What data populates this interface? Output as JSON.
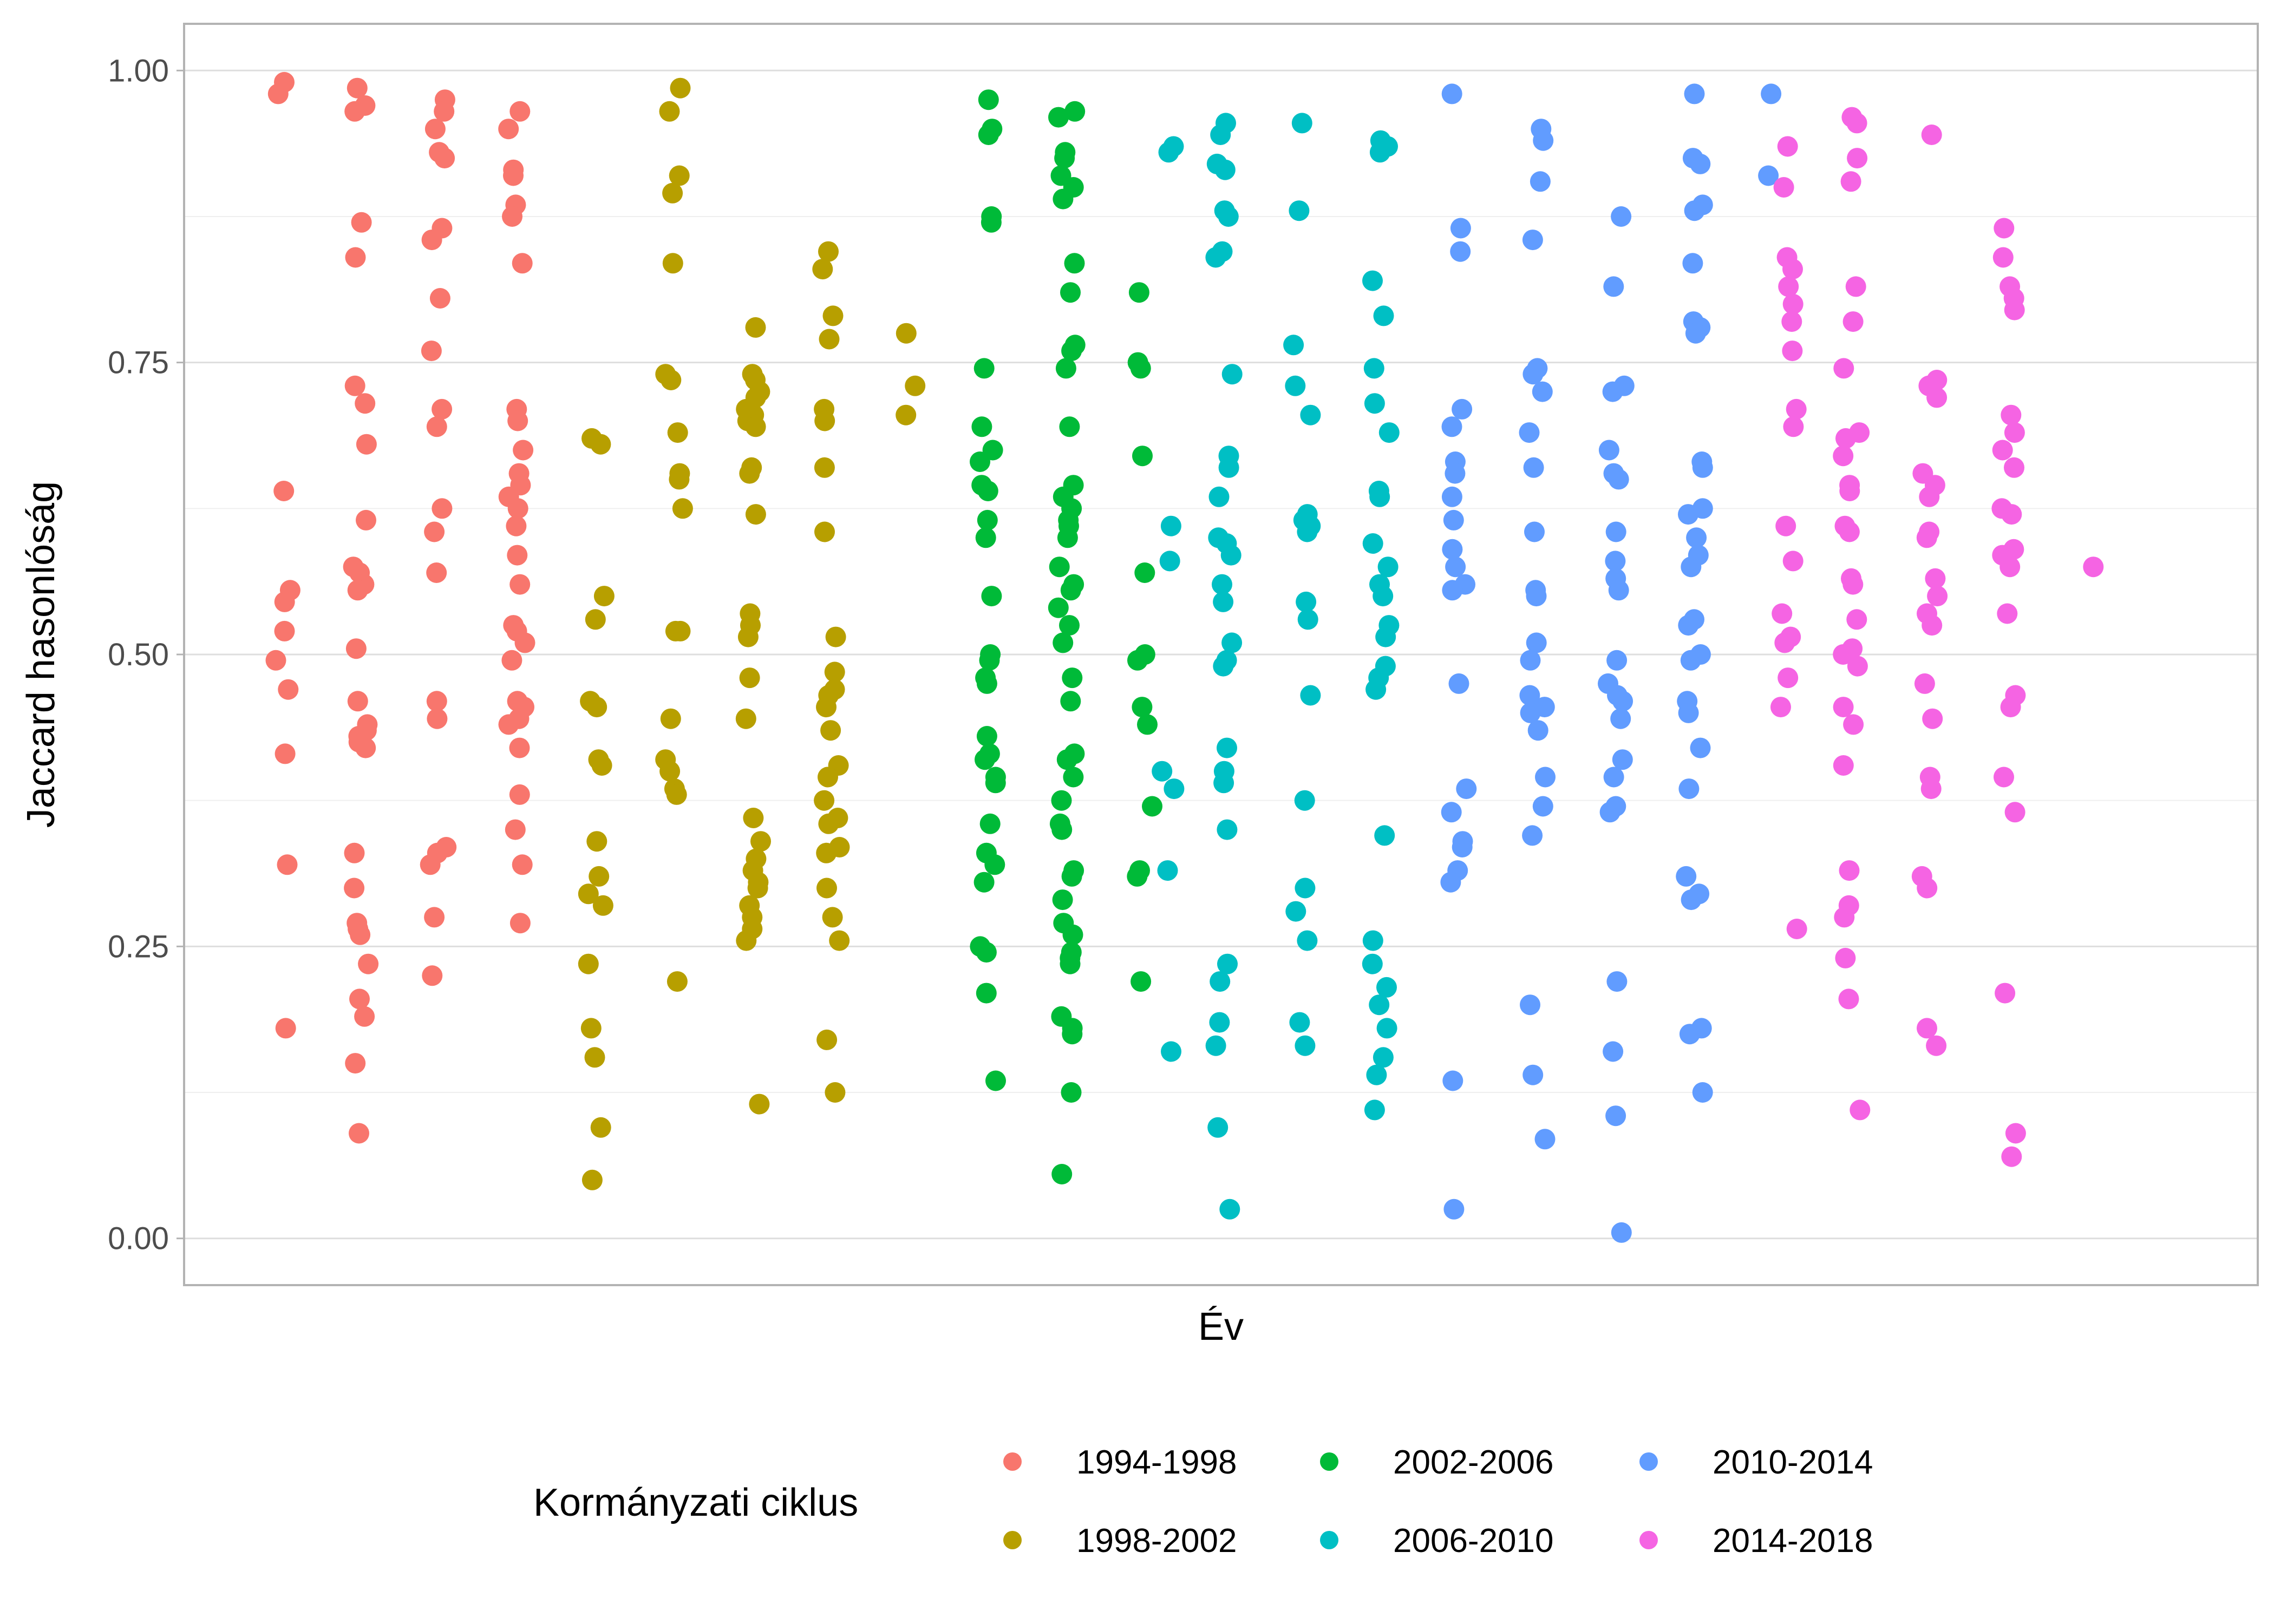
{
  "chart_data": {
    "type": "scatter",
    "title": "",
    "xlabel": "Év",
    "ylabel": "Jaccard hasonlóság",
    "ylim": [
      -0.04,
      1.04
    ],
    "yticks": [
      0.0,
      0.25,
      0.5,
      0.75,
      1.0
    ],
    "ytick_labels": [
      "0.00",
      "0.25",
      "0.50",
      "0.75",
      "1.00"
    ],
    "grid": true,
    "legend": {
      "title": "Kormányzati ciklus",
      "position": "bottom",
      "entries": [
        "1994-1998",
        "1998-2002",
        "2002-2006",
        "2006-2010",
        "2010-2014",
        "2014-2018"
      ]
    },
    "colors": [
      "#F8766D",
      "#B79F00",
      "#00BA38",
      "#00BFC4",
      "#619CFF",
      "#F564E3"
    ],
    "x_groups": 25,
    "series": [
      {
        "name": "1994-1998",
        "groups": [
          {
            "x": 1,
            "values": [
              0.99,
              0.98,
              0.64,
              0.555,
              0.545,
              0.52,
              0.495,
              0.47,
              0.415,
              0.32,
              0.18
            ]
          },
          {
            "x": 2,
            "values": [
              0.985,
              0.97,
              0.965,
              0.87,
              0.84,
              0.73,
              0.715,
              0.68,
              0.615,
              0.575,
              0.57,
              0.56,
              0.555,
              0.505,
              0.46,
              0.44,
              0.435,
              0.43,
              0.425,
              0.42,
              0.33,
              0.3,
              0.27,
              0.265,
              0.26,
              0.235,
              0.205,
              0.19,
              0.15,
              0.09
            ]
          },
          {
            "x": 3,
            "values": [
              0.975,
              0.965,
              0.95,
              0.93,
              0.925,
              0.865,
              0.855,
              0.805,
              0.76,
              0.71,
              0.695,
              0.625,
              0.605,
              0.57,
              0.46,
              0.445,
              0.335,
              0.33,
              0.32,
              0.275,
              0.225
            ]
          },
          {
            "x": 4,
            "values": [
              0.965,
              0.95,
              0.915,
              0.91,
              0.885,
              0.875,
              0.835,
              0.71,
              0.7,
              0.675,
              0.655,
              0.645,
              0.635,
              0.625,
              0.61,
              0.585,
              0.56,
              0.525,
              0.52,
              0.51,
              0.495,
              0.46,
              0.455,
              0.445,
              0.44,
              0.42,
              0.38,
              0.35,
              0.32,
              0.27
            ]
          }
        ]
      },
      {
        "name": "1998-2002",
        "groups": [
          {
            "x": 5,
            "values": [
              0.685,
              0.68,
              0.55,
              0.53,
              0.46,
              0.455,
              0.41,
              0.405,
              0.34,
              0.31,
              0.295,
              0.285,
              0.235,
              0.18,
              0.155,
              0.095,
              0.05
            ]
          },
          {
            "x": 6,
            "values": [
              0.985,
              0.965,
              0.91,
              0.895,
              0.835,
              0.74,
              0.735,
              0.69,
              0.655,
              0.65,
              0.625,
              0.52,
              0.52,
              0.445,
              0.41,
              0.4,
              0.385,
              0.38,
              0.22
            ]
          },
          {
            "x": 7,
            "values": [
              0.78,
              0.74,
              0.735,
              0.725,
              0.72,
              0.71,
              0.705,
              0.7,
              0.695,
              0.66,
              0.655,
              0.62,
              0.535,
              0.525,
              0.515,
              0.48,
              0.445,
              0.36,
              0.34,
              0.325,
              0.315,
              0.305,
              0.3,
              0.285,
              0.275,
              0.265,
              0.255,
              0.115
            ]
          },
          {
            "x": 8,
            "values": [
              0.845,
              0.83,
              0.79,
              0.77,
              0.71,
              0.7,
              0.66,
              0.605,
              0.515,
              0.485,
              0.47,
              0.465,
              0.455,
              0.435,
              0.405,
              0.395,
              0.375,
              0.36,
              0.355,
              0.335,
              0.33,
              0.3,
              0.275,
              0.255,
              0.17,
              0.125
            ]
          },
          {
            "x": 9,
            "values": [
              0.775,
              0.73,
              0.705
            ]
          }
        ]
      },
      {
        "name": "2002-2006",
        "groups": [
          {
            "x": 10,
            "values": [
              0.975,
              0.95,
              0.945,
              0.875,
              0.87,
              0.745,
              0.695,
              0.675,
              0.665,
              0.645,
              0.64,
              0.615,
              0.6,
              0.55,
              0.5,
              0.495,
              0.48,
              0.475,
              0.43,
              0.415,
              0.41,
              0.395,
              0.39,
              0.355,
              0.33,
              0.32,
              0.305,
              0.25,
              0.245,
              0.21,
              0.135
            ]
          },
          {
            "x": 11,
            "values": [
              0.965,
              0.96,
              0.93,
              0.925,
              0.91,
              0.9,
              0.89,
              0.835,
              0.81,
              0.765,
              0.76,
              0.745,
              0.695,
              0.645,
              0.635,
              0.625,
              0.615,
              0.61,
              0.6,
              0.575,
              0.56,
              0.555,
              0.54,
              0.525,
              0.51,
              0.48,
              0.46,
              0.415,
              0.41,
              0.395,
              0.375,
              0.355,
              0.35,
              0.315,
              0.31,
              0.29,
              0.27,
              0.26,
              0.245,
              0.24,
              0.235,
              0.19,
              0.18,
              0.175,
              0.125,
              0.055
            ]
          },
          {
            "x": 12,
            "values": [
              0.81,
              0.75,
              0.745,
              0.67,
              0.57,
              0.5,
              0.495,
              0.455,
              0.44,
              0.37,
              0.315,
              0.31,
              0.22
            ]
          }
        ]
      },
      {
        "name": "2006-2010",
        "groups": [
          {
            "x": 12.3,
            "values": [
              0.935,
              0.93,
              0.61,
              0.58,
              0.4,
              0.385,
              0.315,
              0.16
            ]
          },
          {
            "x": 13,
            "values": [
              0.955,
              0.945,
              0.92,
              0.915,
              0.88,
              0.875,
              0.845,
              0.84,
              0.74,
              0.67,
              0.66,
              0.635,
              0.6,
              0.595,
              0.585,
              0.56,
              0.545,
              0.51,
              0.495,
              0.49,
              0.42,
              0.4,
              0.39,
              0.35,
              0.235,
              0.22,
              0.185,
              0.165,
              0.095,
              0.025
            ]
          },
          {
            "x": 14,
            "values": [
              0.955,
              0.88,
              0.765,
              0.73,
              0.705,
              0.62,
              0.615,
              0.61,
              0.605,
              0.545,
              0.53,
              0.465,
              0.375,
              0.3,
              0.28,
              0.255,
              0.185,
              0.165
            ]
          },
          {
            "x": 15,
            "values": [
              0.94,
              0.935,
              0.93,
              0.82,
              0.79,
              0.745,
              0.715,
              0.69,
              0.64,
              0.635,
              0.595,
              0.575,
              0.56,
              0.55,
              0.525,
              0.515,
              0.49,
              0.48,
              0.47,
              0.345,
              0.255,
              0.235,
              0.215,
              0.2,
              0.18,
              0.155,
              0.14,
              0.11
            ]
          }
        ]
      },
      {
        "name": "2010-2014",
        "groups": [
          {
            "x": 16,
            "values": [
              0.98,
              0.865,
              0.845,
              0.71,
              0.695,
              0.665,
              0.655,
              0.635,
              0.615,
              0.59,
              0.575,
              0.56,
              0.555,
              0.475,
              0.385,
              0.365,
              0.34,
              0.335,
              0.315,
              0.305,
              0.135,
              0.025
            ]
          },
          {
            "x": 17,
            "values": [
              0.95,
              0.94,
              0.905,
              0.855,
              0.745,
              0.74,
              0.725,
              0.69,
              0.66,
              0.605,
              0.555,
              0.55,
              0.51,
              0.495,
              0.465,
              0.455,
              0.45,
              0.435,
              0.395,
              0.37,
              0.345,
              0.2,
              0.14,
              0.085
            ]
          },
          {
            "x": 18,
            "values": [
              0.875,
              0.815,
              0.73,
              0.725,
              0.675,
              0.655,
              0.65,
              0.605,
              0.58,
              0.565,
              0.555,
              0.495,
              0.475,
              0.465,
              0.46,
              0.445,
              0.41,
              0.395,
              0.37,
              0.365,
              0.22,
              0.16,
              0.105,
              0.005
            ]
          },
          {
            "x": 19,
            "values": [
              0.98,
              0.925,
              0.92,
              0.885,
              0.88,
              0.835,
              0.785,
              0.78,
              0.775,
              0.665,
              0.66,
              0.625,
              0.62,
              0.6,
              0.585,
              0.575,
              0.53,
              0.525,
              0.5,
              0.495,
              0.46,
              0.45,
              0.42,
              0.385,
              0.31,
              0.295,
              0.29,
              0.18,
              0.175,
              0.125
            ]
          },
          {
            "x": 20,
            "values": [
              0.98,
              0.91
            ]
          }
        ]
      },
      {
        "name": "2014-2018",
        "groups": [
          {
            "x": 20.2,
            "values": [
              0.935,
              0.9,
              0.84,
              0.83,
              0.815,
              0.8,
              0.785,
              0.76,
              0.71,
              0.695,
              0.61,
              0.58,
              0.535,
              0.515,
              0.51,
              0.48,
              0.455,
              0.265
            ]
          },
          {
            "x": 21,
            "values": [
              0.96,
              0.955,
              0.925,
              0.905,
              0.815,
              0.785,
              0.745,
              0.69,
              0.685,
              0.67,
              0.645,
              0.64,
              0.61,
              0.605,
              0.565,
              0.56,
              0.53,
              0.505,
              0.5,
              0.49,
              0.455,
              0.44,
              0.405,
              0.315,
              0.285,
              0.275,
              0.24,
              0.205,
              0.11
            ]
          },
          {
            "x": 22,
            "values": [
              0.945,
              0.735,
              0.73,
              0.72,
              0.655,
              0.645,
              0.635,
              0.605,
              0.6,
              0.565,
              0.55,
              0.535,
              0.525,
              0.475,
              0.445,
              0.395,
              0.385,
              0.31,
              0.3,
              0.18,
              0.165
            ]
          },
          {
            "x": 23,
            "values": [
              0.865,
              0.84,
              0.815,
              0.805,
              0.795,
              0.705,
              0.69,
              0.675,
              0.66,
              0.625,
              0.62,
              0.59,
              0.585,
              0.575,
              0.535,
              0.465,
              0.455,
              0.395,
              0.365,
              0.21,
              0.09,
              0.07
            ]
          },
          {
            "x": 24,
            "values": [
              0.575
            ]
          }
        ]
      }
    ]
  }
}
